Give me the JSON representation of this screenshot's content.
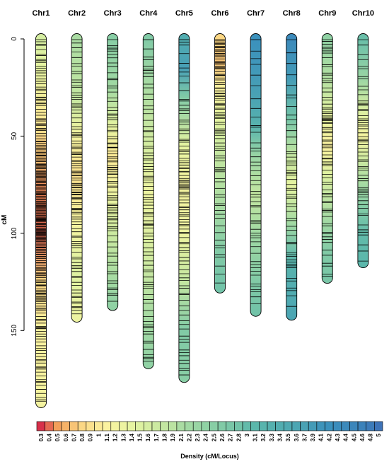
{
  "chart_data": {
    "type": "heatmap",
    "subtype": "chromosome-density-map",
    "ylabel": "cM",
    "y_reversed": true,
    "ylim": [
      0,
      185
    ],
    "yticks": [
      0,
      50,
      100,
      150
    ],
    "chromosomes": [
      {
        "name": "Chr1",
        "length": 187,
        "density": [
          [
            0,
            1.6
          ],
          [
            15,
            1.4
          ],
          [
            40,
            1.0
          ],
          [
            60,
            0.7
          ],
          [
            80,
            0.45
          ],
          [
            100,
            0.4
          ],
          [
            125,
            0.8
          ],
          [
            150,
            1.1
          ],
          [
            187,
            1.2
          ]
        ],
        "marker_spacing": 1.7,
        "seed": 11
      },
      {
        "name": "Chr2",
        "length": 143,
        "density": [
          [
            0,
            2.1
          ],
          [
            30,
            1.8
          ],
          [
            50,
            1.2
          ],
          [
            70,
            0.9
          ],
          [
            95,
            1.2
          ],
          [
            120,
            1.5
          ],
          [
            143,
            1.3
          ]
        ],
        "marker_spacing": 2.2,
        "seed": 23
      },
      {
        "name": "Chr3",
        "length": 137,
        "density": [
          [
            0,
            2.5
          ],
          [
            25,
            2.2
          ],
          [
            45,
            1.4
          ],
          [
            60,
            1.0
          ],
          [
            80,
            1.3
          ],
          [
            100,
            1.7
          ],
          [
            137,
            2.4
          ]
        ],
        "marker_spacing": 2.6,
        "seed": 37
      },
      {
        "name": "Chr4",
        "length": 167,
        "density": [
          [
            0,
            2.6
          ],
          [
            30,
            2.0
          ],
          [
            55,
            1.6
          ],
          [
            80,
            1.3
          ],
          [
            110,
            1.6
          ],
          [
            140,
            2.1
          ],
          [
            167,
            2.4
          ]
        ],
        "marker_spacing": 2.3,
        "seed": 41
      },
      {
        "name": "Chr5",
        "length": 174,
        "density": [
          [
            0,
            3.4
          ],
          [
            15,
            3.8
          ],
          [
            30,
            2.6
          ],
          [
            55,
            1.4
          ],
          [
            75,
            1.2
          ],
          [
            100,
            1.3
          ],
          [
            125,
            1.8
          ],
          [
            150,
            2.6
          ],
          [
            174,
            2.5
          ]
        ],
        "marker_spacing": 2.0,
        "seed": 53
      },
      {
        "name": "Chr6",
        "length": 128,
        "density": [
          [
            0,
            0.8
          ],
          [
            12,
            0.7
          ],
          [
            25,
            1.1
          ],
          [
            40,
            1.4
          ],
          [
            60,
            1.8
          ],
          [
            85,
            2.1
          ],
          [
            110,
            2.6
          ],
          [
            128,
            2.8
          ]
        ],
        "marker_spacing": 3.0,
        "seed": 67
      },
      {
        "name": "Chr7",
        "length": 140,
        "density": [
          [
            0,
            4.2
          ],
          [
            15,
            4.0
          ],
          [
            30,
            3.7
          ],
          [
            45,
            3.2
          ],
          [
            60,
            2.3
          ],
          [
            80,
            1.8
          ],
          [
            100,
            2.2
          ],
          [
            125,
            2.6
          ],
          [
            140,
            2.8
          ]
        ],
        "marker_spacing": 3.2,
        "seed": 71
      },
      {
        "name": "Chr8",
        "length": 142,
        "density": [
          [
            0,
            4.4
          ],
          [
            20,
            3.9
          ],
          [
            40,
            2.8
          ],
          [
            60,
            1.8
          ],
          [
            75,
            1.4
          ],
          [
            95,
            2.2
          ],
          [
            115,
            3.2
          ],
          [
            142,
            3.6
          ]
        ],
        "marker_spacing": 3.3,
        "seed": 83
      },
      {
        "name": "Chr9",
        "length": 123,
        "density": [
          [
            0,
            2.4
          ],
          [
            20,
            2.0
          ],
          [
            40,
            1.4
          ],
          [
            55,
            1.1
          ],
          [
            70,
            1.5
          ],
          [
            90,
            2.1
          ],
          [
            110,
            2.6
          ],
          [
            123,
            2.7
          ]
        ],
        "marker_spacing": 2.9,
        "seed": 97
      },
      {
        "name": "Chr10",
        "length": 115,
        "density": [
          [
            0,
            2.9
          ],
          [
            20,
            2.3
          ],
          [
            35,
            1.6
          ],
          [
            50,
            1.2
          ],
          [
            65,
            1.8
          ],
          [
            85,
            2.5
          ],
          [
            100,
            3.0
          ],
          [
            115,
            3.1
          ]
        ],
        "marker_spacing": 3.1,
        "seed": 101
      }
    ],
    "legend": {
      "title": "Density (cM/Locus)",
      "bins": [
        "0.3",
        "0.4",
        "0.5",
        "0.6",
        "0.7",
        "0.8",
        "0.9",
        "1",
        "1.1",
        "1.2",
        "1.3",
        "1.4",
        "1.5",
        "1.6",
        "1.7",
        "1.8",
        "1.9",
        "2.1",
        "2.2",
        "2.3",
        "2.4",
        "2.5",
        "2.6",
        "2.7",
        "2.8",
        "3",
        "3.1",
        "3.2",
        "3.3",
        "3.4",
        "3.5",
        "3.6",
        "3.7",
        "3.9",
        "4.1",
        "4.2",
        "4.3",
        "4.4",
        "4.5",
        "4.6",
        "4.8",
        "5"
      ]
    },
    "colors": {
      "palette": [
        "#d7304a",
        "#f39f5a",
        "#fbd784",
        "#fbf2a0",
        "#e6f4a1",
        "#c3e6a1",
        "#90d2a4",
        "#5bb7ab",
        "#3b91bc",
        "#3d73b8"
      ],
      "palette_stops": [
        0.3,
        0.5,
        0.8,
        1.1,
        1.4,
        1.8,
        2.4,
        3.1,
        4.2,
        5.0
      ],
      "marker": "#000000",
      "outline": "#000000"
    }
  }
}
